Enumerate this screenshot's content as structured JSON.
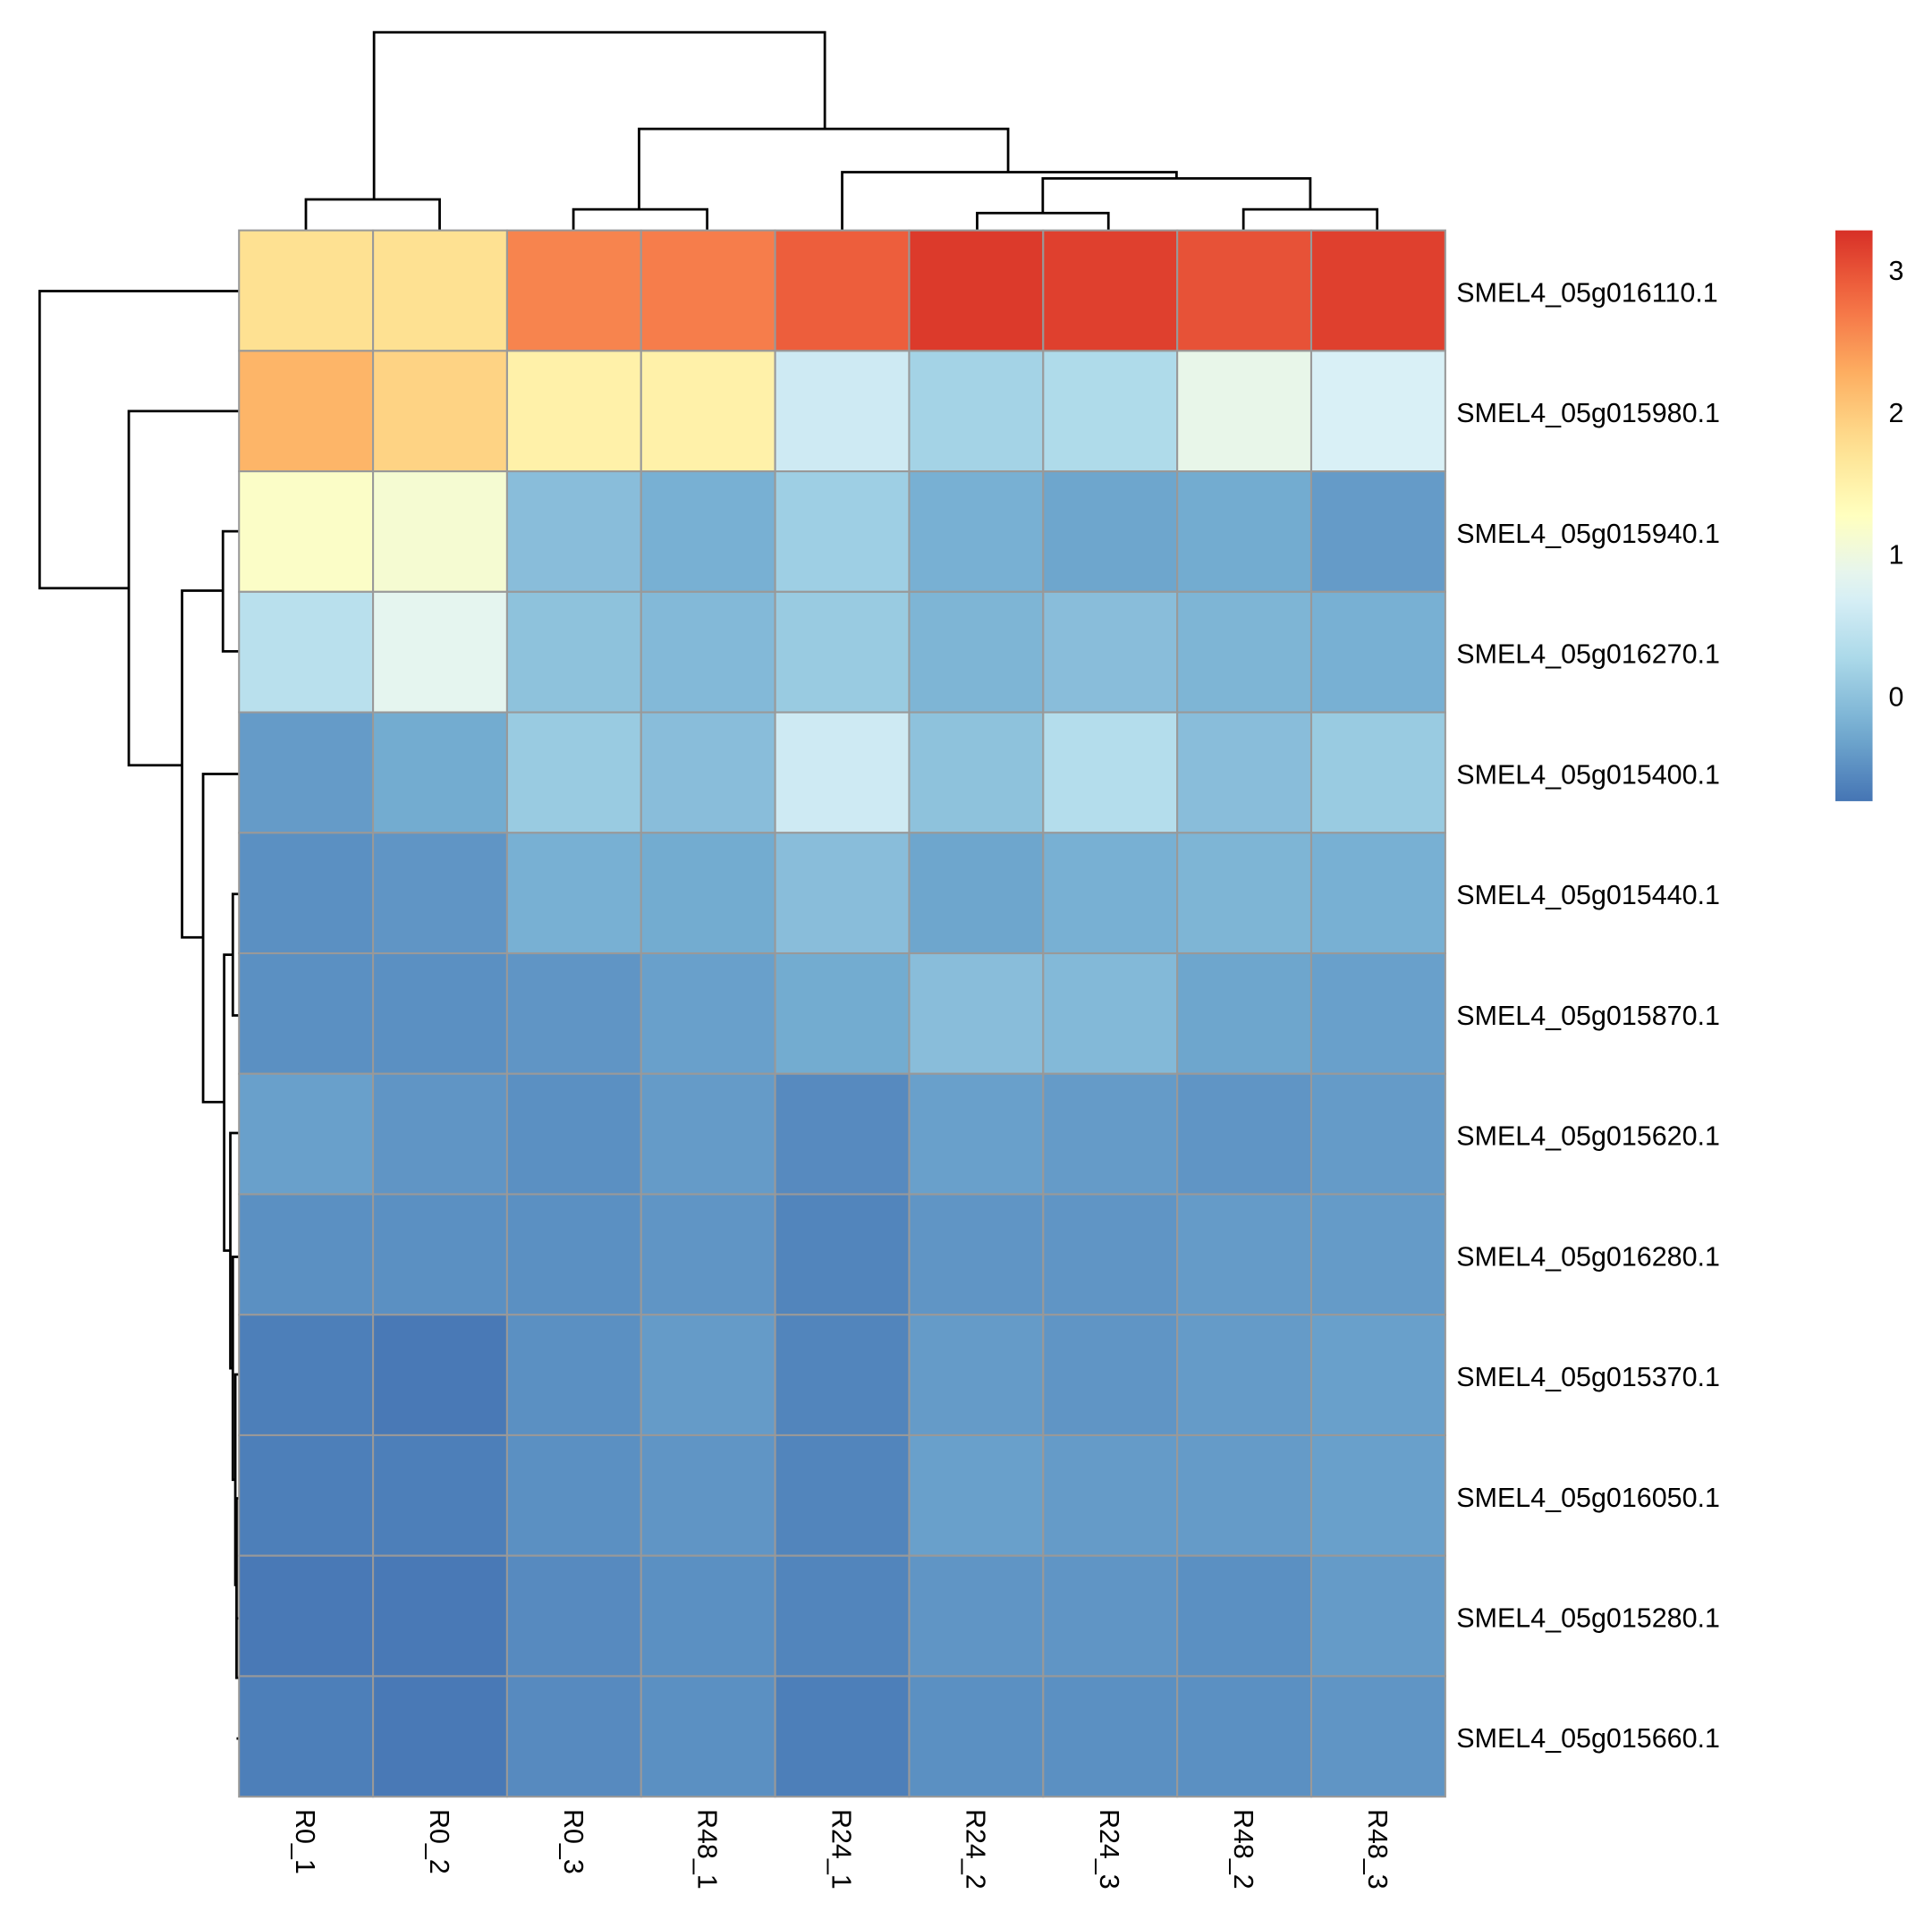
{
  "chart_data": {
    "type": "heatmap",
    "title": "",
    "columns": [
      "R0_1",
      "R0_2",
      "R0_3",
      "R48_1",
      "R24_1",
      "R24_2",
      "R24_3",
      "R48_2",
      "R48_3"
    ],
    "rows": [
      "SMEL4_05g016110.1",
      "SMEL4_05g015980.1",
      "SMEL4_05g015940.1",
      "SMEL4_05g016270.1",
      "SMEL4_05g015400.1",
      "SMEL4_05g015440.1",
      "SMEL4_05g015870.1",
      "SMEL4_05g015620.1",
      "SMEL4_05g016280.1",
      "SMEL4_05g015370.1",
      "SMEL4_05g016050.1",
      "SMEL4_05g015280.1",
      "SMEL4_05g015660.1"
    ],
    "values": [
      [
        1.75,
        1.75,
        2.6,
        2.65,
        2.9,
        3.2,
        3.15,
        3.0,
        3.15
      ],
      [
        2.2,
        1.9,
        1.5,
        1.5,
        0.6,
        0.2,
        0.3,
        0.9,
        0.7
      ],
      [
        1.2,
        1.1,
        -0.05,
        -0.2,
        0.15,
        -0.2,
        -0.3,
        -0.25,
        -0.4
      ],
      [
        0.4,
        0.85,
        0.0,
        -0.1,
        0.1,
        -0.15,
        -0.05,
        -0.15,
        -0.2
      ],
      [
        -0.4,
        -0.25,
        0.1,
        -0.05,
        0.6,
        0.0,
        0.35,
        -0.05,
        0.1
      ],
      [
        -0.5,
        -0.45,
        -0.2,
        -0.25,
        -0.05,
        -0.3,
        -0.2,
        -0.15,
        -0.2
      ],
      [
        -0.5,
        -0.5,
        -0.45,
        -0.35,
        -0.25,
        -0.05,
        -0.1,
        -0.3,
        -0.35
      ],
      [
        -0.35,
        -0.45,
        -0.5,
        -0.4,
        -0.55,
        -0.35,
        -0.4,
        -0.45,
        -0.4
      ],
      [
        -0.5,
        -0.5,
        -0.5,
        -0.45,
        -0.6,
        -0.45,
        -0.45,
        -0.4,
        -0.4
      ],
      [
        -0.65,
        -0.7,
        -0.5,
        -0.4,
        -0.6,
        -0.4,
        -0.45,
        -0.4,
        -0.35
      ],
      [
        -0.65,
        -0.65,
        -0.5,
        -0.45,
        -0.6,
        -0.35,
        -0.4,
        -0.4,
        -0.35
      ],
      [
        -0.7,
        -0.7,
        -0.55,
        -0.5,
        -0.6,
        -0.45,
        -0.45,
        -0.5,
        -0.4
      ],
      [
        -0.65,
        -0.7,
        -0.55,
        -0.5,
        -0.65,
        -0.5,
        -0.5,
        -0.5,
        -0.45
      ]
    ],
    "color_scale": {
      "range": [
        -0.74,
        3.28
      ],
      "palette": [
        "#313695",
        "#4575B4",
        "#74ADD1",
        "#ABD9E9",
        "#E0F3F8",
        "#FFFFBF",
        "#FEE090",
        "#FDAE61",
        "#F46D43",
        "#D73027",
        "#A50026"
      ],
      "ticks": [
        0,
        1,
        2,
        3
      ]
    },
    "legend": "right",
    "row_dendrogram": true,
    "col_dendrogram": true,
    "cell_border_color": "#999999"
  }
}
